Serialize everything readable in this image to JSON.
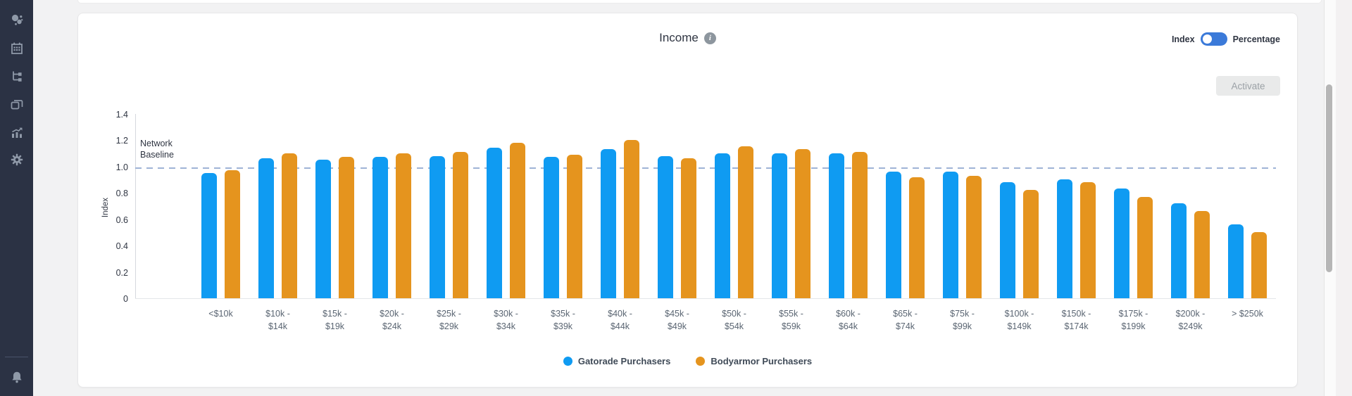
{
  "sidebar": {
    "icons": [
      {
        "name": "audience-icon"
      },
      {
        "name": "calendar-icon"
      },
      {
        "name": "journey-icon"
      },
      {
        "name": "cards-icon"
      },
      {
        "name": "analytics-icon"
      },
      {
        "name": "settings-icon"
      },
      {
        "name": "notifications-icon"
      }
    ]
  },
  "header": {
    "title": "Income"
  },
  "view_toggle": {
    "left_label": "Index",
    "right_label": "Percentage",
    "selected": "Index"
  },
  "activate_button": {
    "label": "Activate"
  },
  "colors": {
    "sidebar_bg": "#2b3244",
    "sidebar_icon": "#8f99a8",
    "bar_blue": "#0f9bf2",
    "bar_orange": "#e5941e",
    "baseline_dash": "#9fb3d6",
    "toggle_blue": "#3b7ad9"
  },
  "chart_data": {
    "type": "bar",
    "title": "Income",
    "xlabel": "",
    "ylabel": "Index",
    "ylim": [
      0,
      1.4
    ],
    "yticks": [
      0,
      0.2,
      0.4,
      0.6,
      0.8,
      1.0,
      1.2,
      1.4
    ],
    "ytick_labels": [
      "0",
      "0.2",
      "0.4",
      "0.6",
      "0.8",
      "1.0",
      "1.2",
      "1.4"
    ],
    "grid": false,
    "legend_position": "bottom",
    "baseline": {
      "value": 1.0,
      "label": "Network Baseline"
    },
    "categories": [
      "<$10k",
      "$10k - $14k",
      "$15k - $19k",
      "$20k - $24k",
      "$25k - $29k",
      "$30k - $34k",
      "$35k - $39k",
      "$40k - $44k",
      "$45k - $49k",
      "$50k - $54k",
      "$55k - $59k",
      "$60k - $64k",
      "$65k - $74k",
      "$75k - $99k",
      "$100k - $149k",
      "$150k - $174k",
      "$175k - $199k",
      "$200k - $249k",
      "> $250k"
    ],
    "series": [
      {
        "name": "Gatorade Purchasers",
        "color": "#0f9bf2",
        "values": [
          0.95,
          1.06,
          1.05,
          1.07,
          1.08,
          1.14,
          1.07,
          1.13,
          1.08,
          1.1,
          1.1,
          1.1,
          0.96,
          0.96,
          0.88,
          0.9,
          0.83,
          0.72,
          0.56
        ]
      },
      {
        "name": "Bodyarmor Purchasers",
        "color": "#e5941e",
        "values": [
          0.97,
          1.1,
          1.07,
          1.1,
          1.11,
          1.18,
          1.09,
          1.2,
          1.06,
          1.15,
          1.13,
          1.11,
          0.92,
          0.93,
          0.82,
          0.88,
          0.77,
          0.66,
          0.5
        ]
      }
    ]
  }
}
